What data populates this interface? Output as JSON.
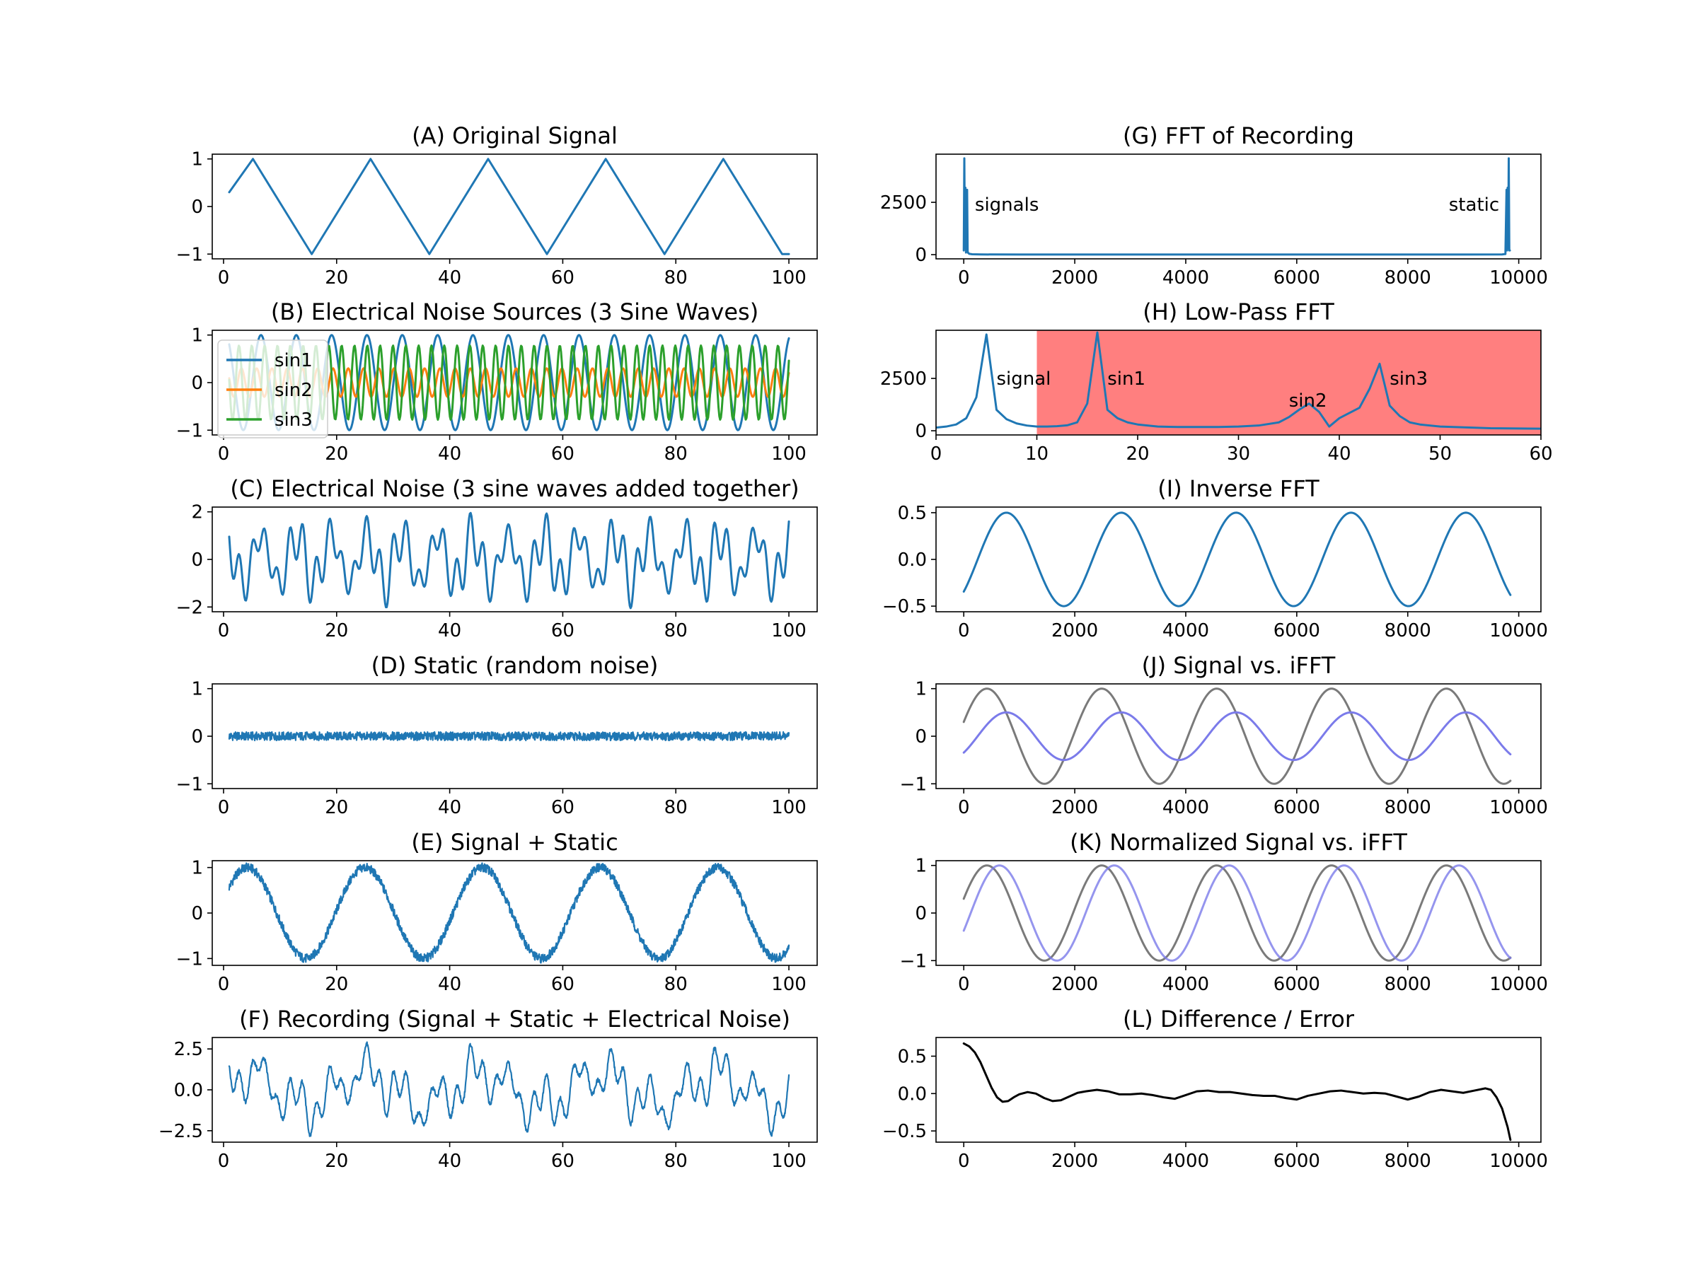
{
  "chart_data": [
    {
      "id": "A",
      "type": "line",
      "title": "(A) Original Signal",
      "xlim": [
        -2,
        105
      ],
      "ylim": [
        -1.1,
        1.1
      ],
      "xticks": [
        0,
        20,
        40,
        60,
        80,
        100
      ],
      "xticklabels": [
        "0",
        "20",
        "40",
        "60",
        "80",
        "100"
      ],
      "yticks": [
        1,
        0,
        -1
      ],
      "yticklabels": [
        "1",
        "0",
        "−1"
      ],
      "series": [
        {
          "color": "#1f77b4",
          "x": [
            1,
            5.2,
            10.4,
            15.6,
            20.8,
            26,
            31.2,
            36.4,
            41.6,
            46.8,
            52,
            57.2,
            62.4,
            67.6,
            72.8,
            78,
            83.2,
            88.4,
            93.6,
            98.8,
            100
          ],
          "y": [
            0.3,
            1,
            0,
            -1,
            0,
            1,
            0,
            -1,
            0,
            1,
            0,
            -1,
            0,
            1,
            0,
            -1,
            0,
            1,
            0,
            -1,
            -1
          ]
        }
      ]
    },
    {
      "id": "B",
      "type": "line",
      "title": "(B) Electrical Noise Sources (3 Sine Waves)",
      "xlim": [
        -2,
        105
      ],
      "ylim": [
        -1.1,
        1.1
      ],
      "xticks": [
        0,
        20,
        40,
        60,
        80,
        100
      ],
      "xticklabels": [
        "0",
        "20",
        "40",
        "60",
        "80",
        "100"
      ],
      "yticks": [
        1,
        0,
        -1
      ],
      "yticklabels": [
        "1",
        "0",
        "−1"
      ],
      "legend_position": "upper-left",
      "series": [
        {
          "name": "sin1",
          "color": "#1f77b4",
          "x_start": 1,
          "x_end": 100,
          "wave": {
            "amplitude": 1.0,
            "period": 6.25,
            "phase": 1.2,
            "offset": 0
          }
        },
        {
          "name": "sin2",
          "color": "#ff7f0e",
          "x_start": 1,
          "x_end": 100,
          "wave": {
            "amplitude": 0.3,
            "period": 2.7,
            "phase": 0.5,
            "offset": 0
          }
        },
        {
          "name": "sin3",
          "color": "#2ca02c",
          "x_start": 1,
          "x_end": 100,
          "wave": {
            "amplitude": 0.78,
            "period": 2.27,
            "phase": 0.3,
            "offset": 0
          }
        }
      ]
    },
    {
      "id": "C",
      "type": "line",
      "title": "(C) Electrical Noise (3 sine waves added together)",
      "xlim": [
        -2,
        105
      ],
      "ylim": [
        -2.2,
        2.2
      ],
      "xticks": [
        0,
        20,
        40,
        60,
        80,
        100
      ],
      "xticklabels": [
        "0",
        "20",
        "40",
        "60",
        "80",
        "100"
      ],
      "yticks": [
        2,
        0,
        -2
      ],
      "yticklabels": [
        "2",
        "0",
        "−2"
      ],
      "series": [
        {
          "color": "#1f77b4",
          "x_start": 1,
          "x_end": 100,
          "waves": [
            {
              "amplitude": 1.0,
              "period": 6.25,
              "phase": 1.2
            },
            {
              "amplitude": 0.3,
              "period": 2.7,
              "phase": 0.5
            },
            {
              "amplitude": 0.78,
              "period": 2.27,
              "phase": 0.3
            }
          ]
        }
      ]
    },
    {
      "id": "D",
      "type": "line",
      "title": "(D) Static (random noise)",
      "xlim": [
        -2,
        105
      ],
      "ylim": [
        -1.1,
        1.1
      ],
      "xticks": [
        0,
        20,
        40,
        60,
        80,
        100
      ],
      "xticklabels": [
        "0",
        "20",
        "40",
        "60",
        "80",
        "100"
      ],
      "yticks": [
        1,
        0,
        -1
      ],
      "yticklabels": [
        "1",
        "0",
        "−1"
      ],
      "series": [
        {
          "color": "#1f77b4",
          "x_start": 1,
          "x_end": 100,
          "noise_band": 0.09
        }
      ]
    },
    {
      "id": "E",
      "type": "line",
      "title": "(E) Signal + Static",
      "xlim": [
        -2,
        105
      ],
      "ylim": [
        -1.15,
        1.15
      ],
      "xticks": [
        0,
        20,
        40,
        60,
        80,
        100
      ],
      "xticklabels": [
        "0",
        "20",
        "40",
        "60",
        "80",
        "100"
      ],
      "yticks": [
        1,
        0,
        -1
      ],
      "yticklabels": [
        "1",
        "0",
        "−1"
      ],
      "series": [
        {
          "color": "#1f77b4",
          "x_start": 1,
          "x_end": 100,
          "noise_band": 0.1,
          "waves": [
            {
              "amplitude": 1.0,
              "period": 20.8,
              "phase": 0.305
            }
          ]
        }
      ]
    },
    {
      "id": "F",
      "type": "line",
      "title": "(F) Recording (Signal + Static + Electrical Noise)",
      "xlim": [
        -2,
        105
      ],
      "ylim": [
        -3.2,
        3.2
      ],
      "xticks": [
        0,
        20,
        40,
        60,
        80,
        100
      ],
      "xticklabels": [
        "0",
        "20",
        "40",
        "60",
        "80",
        "100"
      ],
      "yticks": [
        2.5,
        0,
        -2.5
      ],
      "yticklabels": [
        "2.5",
        "0.0",
        "−2.5"
      ],
      "series": [
        {
          "color": "#1f77b4",
          "x_start": 1,
          "x_end": 100,
          "noise_band": 0.12,
          "waves": [
            {
              "amplitude": 1.0,
              "period": 20.8,
              "phase": 0.305
            },
            {
              "amplitude": 1.0,
              "period": 6.25,
              "phase": 1.2
            },
            {
              "amplitude": 0.3,
              "period": 2.7,
              "phase": 0.5
            },
            {
              "amplitude": 0.78,
              "period": 2.27,
              "phase": 0.3
            }
          ]
        }
      ]
    },
    {
      "id": "G",
      "type": "line",
      "title": "(G) FFT of Recording",
      "xlim": [
        -500,
        10400
      ],
      "ylim": [
        -200,
        4800
      ],
      "xticks": [
        0,
        2000,
        4000,
        6000,
        8000,
        10000
      ],
      "xticklabels": [
        "0",
        "2000",
        "4000",
        "6000",
        "8000",
        "10000"
      ],
      "yticks": [
        2500,
        0
      ],
      "yticklabels": [
        "2500",
        "0"
      ],
      "annotations": [
        {
          "text": "signals",
          "x": 200,
          "y": 2400,
          "anchor": "start"
        },
        {
          "text": "static",
          "x": 9650,
          "y": 2400,
          "anchor": "end"
        }
      ],
      "series": [
        {
          "color": "#1f77b4",
          "x": [
            0,
            10,
            20,
            30,
            40,
            50,
            60,
            70,
            80,
            100,
            150,
            300,
            1000,
            2000,
            3000,
            4000,
            5000,
            6000,
            7000,
            8000,
            9000,
            9700,
            9760,
            9780,
            9790,
            9800,
            9810,
            9820,
            9830,
            9840
          ],
          "y": [
            200,
            4600,
            300,
            3200,
            100,
            200,
            3100,
            150,
            80,
            40,
            20,
            10,
            5,
            5,
            5,
            5,
            5,
            5,
            5,
            5,
            5,
            10,
            30,
            3100,
            200,
            3200,
            300,
            4600,
            200,
            200
          ]
        }
      ]
    },
    {
      "id": "H",
      "type": "line",
      "title": "(H) Low-Pass FFT",
      "xlim": [
        0,
        60
      ],
      "ylim": [
        -200,
        4800
      ],
      "xticks": [
        0,
        10,
        20,
        30,
        40,
        50,
        60
      ],
      "xticklabels": [
        "0",
        "10",
        "20",
        "30",
        "40",
        "50",
        "60"
      ],
      "yticks": [
        2500,
        0
      ],
      "yticklabels": [
        "2500",
        "0"
      ],
      "shaded_region": {
        "x_start": 10,
        "x_end": 60,
        "color": "#ff7f7f"
      },
      "annotations": [
        {
          "text": "signal",
          "x": 6,
          "y": 2500,
          "anchor": "start"
        },
        {
          "text": "sin1",
          "x": 17,
          "y": 2500,
          "anchor": "start"
        },
        {
          "text": "sin2",
          "x": 35,
          "y": 1450,
          "anchor": "start"
        },
        {
          "text": "sin3",
          "x": 45,
          "y": 2500,
          "anchor": "start"
        }
      ],
      "series": [
        {
          "color": "#1f77b4",
          "x": [
            0,
            1,
            2,
            3,
            4,
            5,
            6,
            7,
            8,
            9,
            10,
            11,
            12,
            13,
            14,
            15,
            16,
            17,
            18,
            19,
            20,
            22,
            24,
            26,
            28,
            30,
            32,
            34,
            35,
            36,
            37,
            38,
            39,
            40,
            41,
            42,
            43,
            44,
            45,
            46,
            47,
            48,
            50,
            55,
            60
          ],
          "y": [
            150,
            200,
            300,
            600,
            1600,
            4600,
            1000,
            550,
            350,
            250,
            200,
            200,
            220,
            260,
            400,
            1300,
            4700,
            1000,
            600,
            400,
            300,
            200,
            180,
            180,
            180,
            200,
            250,
            400,
            650,
            1000,
            1300,
            900,
            200,
            600,
            850,
            1100,
            2000,
            3200,
            1200,
            700,
            400,
            300,
            200,
            120,
            100
          ]
        }
      ]
    },
    {
      "id": "I",
      "type": "line",
      "title": "(I) Inverse FFT",
      "xlim": [
        -500,
        10400
      ],
      "ylim": [
        -0.56,
        0.56
      ],
      "xticks": [
        0,
        2000,
        4000,
        6000,
        8000,
        10000
      ],
      "xticklabels": [
        "0",
        "2000",
        "4000",
        "6000",
        "8000",
        "10000"
      ],
      "yticks": [
        0.5,
        0,
        -0.5
      ],
      "yticklabels": [
        "0.5",
        "0.0",
        "−0.5"
      ],
      "series": [
        {
          "color": "#1f77b4",
          "x_start": 0,
          "x_end": 9850,
          "waves": [
            {
              "amplitude": 0.5,
              "period": 2070,
              "phase": -0.76
            }
          ]
        }
      ]
    },
    {
      "id": "J",
      "type": "line",
      "title": "(J) Signal vs. iFFT",
      "xlim": [
        -500,
        10400
      ],
      "ylim": [
        -1.1,
        1.1
      ],
      "xticks": [
        0,
        2000,
        4000,
        6000,
        8000,
        10000
      ],
      "xticklabels": [
        "0",
        "2000",
        "4000",
        "6000",
        "8000",
        "10000"
      ],
      "yticks": [
        1,
        0,
        -1
      ],
      "yticklabels": [
        "1",
        "0",
        "−1"
      ],
      "series": [
        {
          "color": "#7a7a7a",
          "x_start": 0,
          "x_end": 9850,
          "waves": [
            {
              "amplitude": 1.0,
              "period": 2070,
              "phase": 0.305
            }
          ]
        },
        {
          "color": "#7b7bea",
          "x_start": 0,
          "x_end": 9850,
          "waves": [
            {
              "amplitude": 0.5,
              "period": 2070,
              "phase": -0.76
            }
          ]
        }
      ]
    },
    {
      "id": "K",
      "type": "line",
      "title": "(K) Normalized Signal vs. iFFT",
      "xlim": [
        -500,
        10400
      ],
      "ylim": [
        -1.1,
        1.1
      ],
      "xticks": [
        0,
        2000,
        4000,
        6000,
        8000,
        10000
      ],
      "xticklabels": [
        "0",
        "2000",
        "4000",
        "6000",
        "8000",
        "10000"
      ],
      "yticks": [
        1,
        0,
        -1
      ],
      "yticklabels": [
        "1",
        "0",
        "−1"
      ],
      "series": [
        {
          "color": "#7a7a7a",
          "x_start": 0,
          "x_end": 9850,
          "waves": [
            {
              "amplitude": 1.0,
              "period": 2070,
              "phase": 0.305
            }
          ]
        },
        {
          "color": "#7b7bea",
          "opacity": 0.8,
          "x_start": 0,
          "x_end": 9850,
          "waves": [
            {
              "amplitude": 1.0,
              "period": 2070,
              "phase": -0.38
            }
          ]
        }
      ]
    },
    {
      "id": "L",
      "type": "line",
      "title": "(L) Difference / Error",
      "xlim": [
        -500,
        10400
      ],
      "ylim": [
        -0.65,
        0.75
      ],
      "xticks": [
        0,
        2000,
        4000,
        6000,
        8000,
        10000
      ],
      "xticklabels": [
        "0",
        "2000",
        "4000",
        "6000",
        "8000",
        "10000"
      ],
      "yticks": [
        0.5,
        0,
        -0.5
      ],
      "yticklabels": [
        "0.5",
        "0.0",
        "−0.5"
      ],
      "series": [
        {
          "color": "#000000",
          "x": [
            0,
            100,
            200,
            300,
            400,
            500,
            600,
            700,
            800,
            900,
            1000,
            1150,
            1300,
            1450,
            1600,
            1750,
            1900,
            2050,
            2200,
            2400,
            2600,
            2800,
            3000,
            3200,
            3400,
            3600,
            3800,
            4000,
            4200,
            4400,
            4600,
            4800,
            5000,
            5200,
            5400,
            5600,
            5800,
            6000,
            6200,
            6400,
            6600,
            6800,
            7000,
            7200,
            7400,
            7600,
            7800,
            8000,
            8200,
            8400,
            8600,
            8800,
            9000,
            9200,
            9400,
            9500,
            9600,
            9700,
            9800,
            9850
          ],
          "y": [
            0.67,
            0.63,
            0.55,
            0.42,
            0.25,
            0.08,
            -0.05,
            -0.11,
            -0.1,
            -0.05,
            -0.01,
            0.02,
            0.0,
            -0.06,
            -0.1,
            -0.09,
            -0.04,
            0.01,
            0.03,
            0.05,
            0.03,
            -0.01,
            -0.01,
            0.0,
            -0.02,
            -0.05,
            -0.07,
            -0.02,
            0.03,
            0.04,
            0.02,
            0.02,
            0.0,
            -0.02,
            -0.03,
            -0.03,
            -0.06,
            -0.08,
            -0.03,
            0.0,
            0.03,
            0.04,
            0.02,
            0.0,
            0.01,
            0.0,
            -0.04,
            -0.08,
            -0.04,
            0.02,
            0.05,
            0.03,
            0.01,
            0.04,
            0.07,
            0.05,
            -0.05,
            -0.2,
            -0.45,
            -0.62
          ]
        }
      ]
    }
  ]
}
